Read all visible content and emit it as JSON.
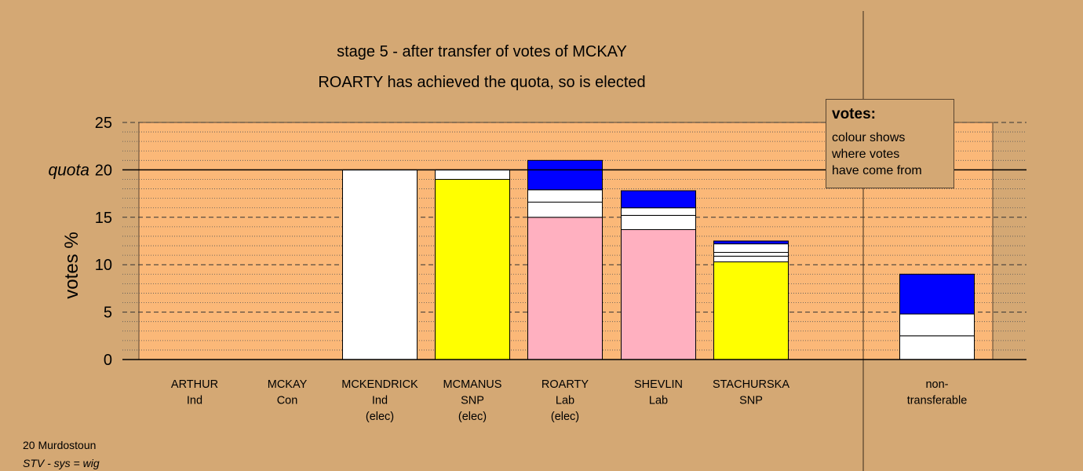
{
  "chart_data": {
    "type": "bar",
    "title": "stage 5 - after transfer of votes of MCKAY",
    "subtitle": "ROARTY has achieved the quota, so is elected",
    "ylabel": "votes %",
    "ylim": [
      0,
      25
    ],
    "yticks": [
      0,
      5,
      10,
      15,
      20,
      25
    ],
    "quota": 20,
    "quota_label": "quota",
    "colors": {
      "background": "#d4a874",
      "plot": "#fbb878",
      "blue": "#0000ff",
      "white": "#ffffff",
      "yellow": "#ffff00",
      "pink": "#ffb0c0"
    },
    "categories": [
      {
        "lines": [
          "ARTHUR",
          "Ind"
        ],
        "segments": []
      },
      {
        "lines": [
          "MCKAY",
          "Con"
        ],
        "segments": []
      },
      {
        "lines": [
          "MCKENDRICK",
          "Ind",
          "(elec)"
        ],
        "segments": [
          {
            "color": "white",
            "value": 20.0
          }
        ]
      },
      {
        "lines": [
          "MCMANUS",
          "SNP",
          "(elec)"
        ],
        "segments": [
          {
            "color": "yellow",
            "value": 19.0
          },
          {
            "color": "white",
            "value": 1.0
          }
        ]
      },
      {
        "lines": [
          "ROARTY",
          "Lab",
          "(elec)"
        ],
        "segments": [
          {
            "color": "pink",
            "value": 15.0
          },
          {
            "color": "white",
            "value": 1.6
          },
          {
            "color": "white",
            "value": 1.3
          },
          {
            "color": "blue",
            "value": 3.1
          }
        ]
      },
      {
        "lines": [
          "SHEVLIN",
          "Lab"
        ],
        "segments": [
          {
            "color": "pink",
            "value": 13.7
          },
          {
            "color": "white",
            "value": 1.5
          },
          {
            "color": "white",
            "value": 0.8
          },
          {
            "color": "blue",
            "value": 1.8
          }
        ]
      },
      {
        "lines": [
          "STACHURSKA",
          "SNP"
        ],
        "segments": [
          {
            "color": "yellow",
            "value": 10.3
          },
          {
            "color": "white",
            "value": 0.6
          },
          {
            "color": "white",
            "value": 0.4
          },
          {
            "color": "white",
            "value": 0.9
          },
          {
            "color": "blue",
            "value": 0.3
          }
        ]
      }
    ],
    "nontransferable": {
      "lines": [
        "non-",
        "transferable"
      ],
      "segments": [
        {
          "color": "white",
          "value": 2.5
        },
        {
          "color": "white",
          "value": 2.3
        },
        {
          "color": "blue",
          "value": 4.2
        }
      ]
    }
  },
  "legend": {
    "title": "votes:",
    "lines": [
      "colour shows",
      "where votes",
      "have come from"
    ]
  },
  "footer": {
    "ward": "20 Murdostoun",
    "system": "STV - sys = wig"
  }
}
